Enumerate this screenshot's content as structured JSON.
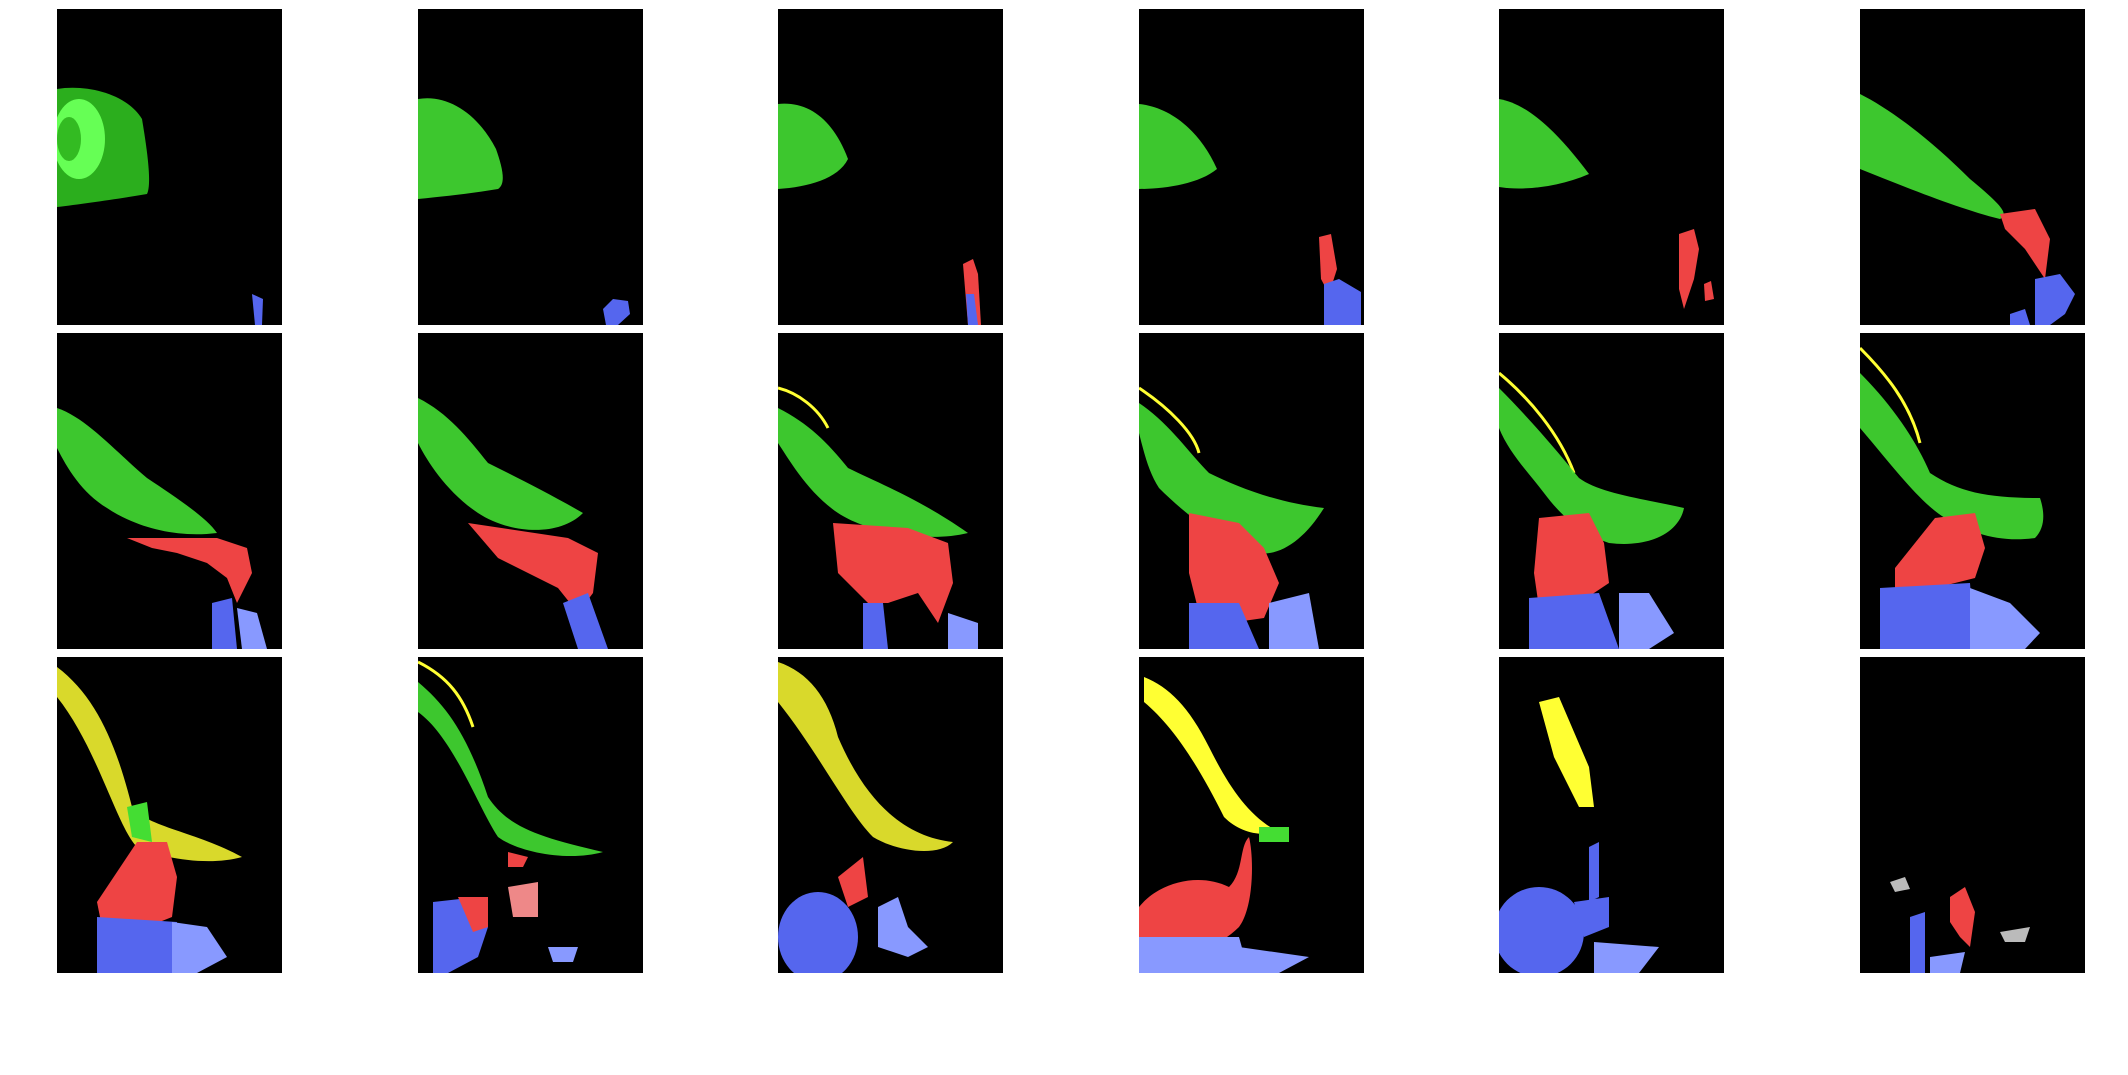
{
  "figure": {
    "rows": 3,
    "columns": 6,
    "panel_background": "#000000",
    "page_background": "#ffffff",
    "label_colors": {
      "green": "#55ee44",
      "red": "#ee4444",
      "blue": "#5566ee",
      "light_blue": "#8899ff",
      "yellow": "#ffff33",
      "gray": "#bbbbbb"
    }
  }
}
